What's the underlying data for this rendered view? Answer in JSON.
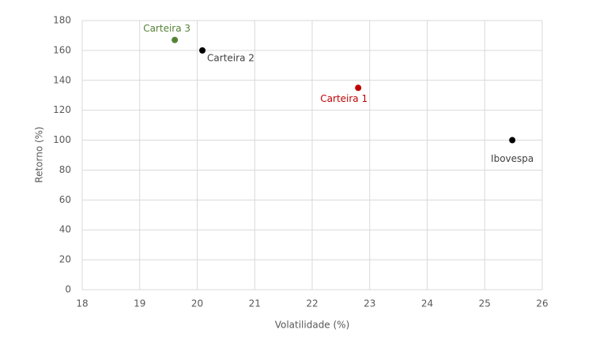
{
  "chart_data": {
    "type": "scatter",
    "x_label": "Volatilidade (%)",
    "y_label": "Retorno (%)",
    "labels": [
      "Carteira 3",
      "Carteira 2",
      "Carteira 1",
      "Ibovespa"
    ],
    "x": [
      19.61,
      20.09,
      22.8,
      25.48
    ],
    "values": [
      167,
      160,
      135,
      100
    ],
    "colors": [
      "#548235",
      "#000000",
      "#c00000",
      "#000000"
    ],
    "xlim": [
      18,
      26
    ],
    "xticks": [
      18,
      19,
      20,
      21,
      22,
      23,
      24,
      25,
      26
    ],
    "ylim": [
      0,
      180
    ],
    "yticks": [
      0,
      20,
      40,
      60,
      80,
      100,
      120,
      140,
      160,
      180
    ],
    "grid": true
  }
}
